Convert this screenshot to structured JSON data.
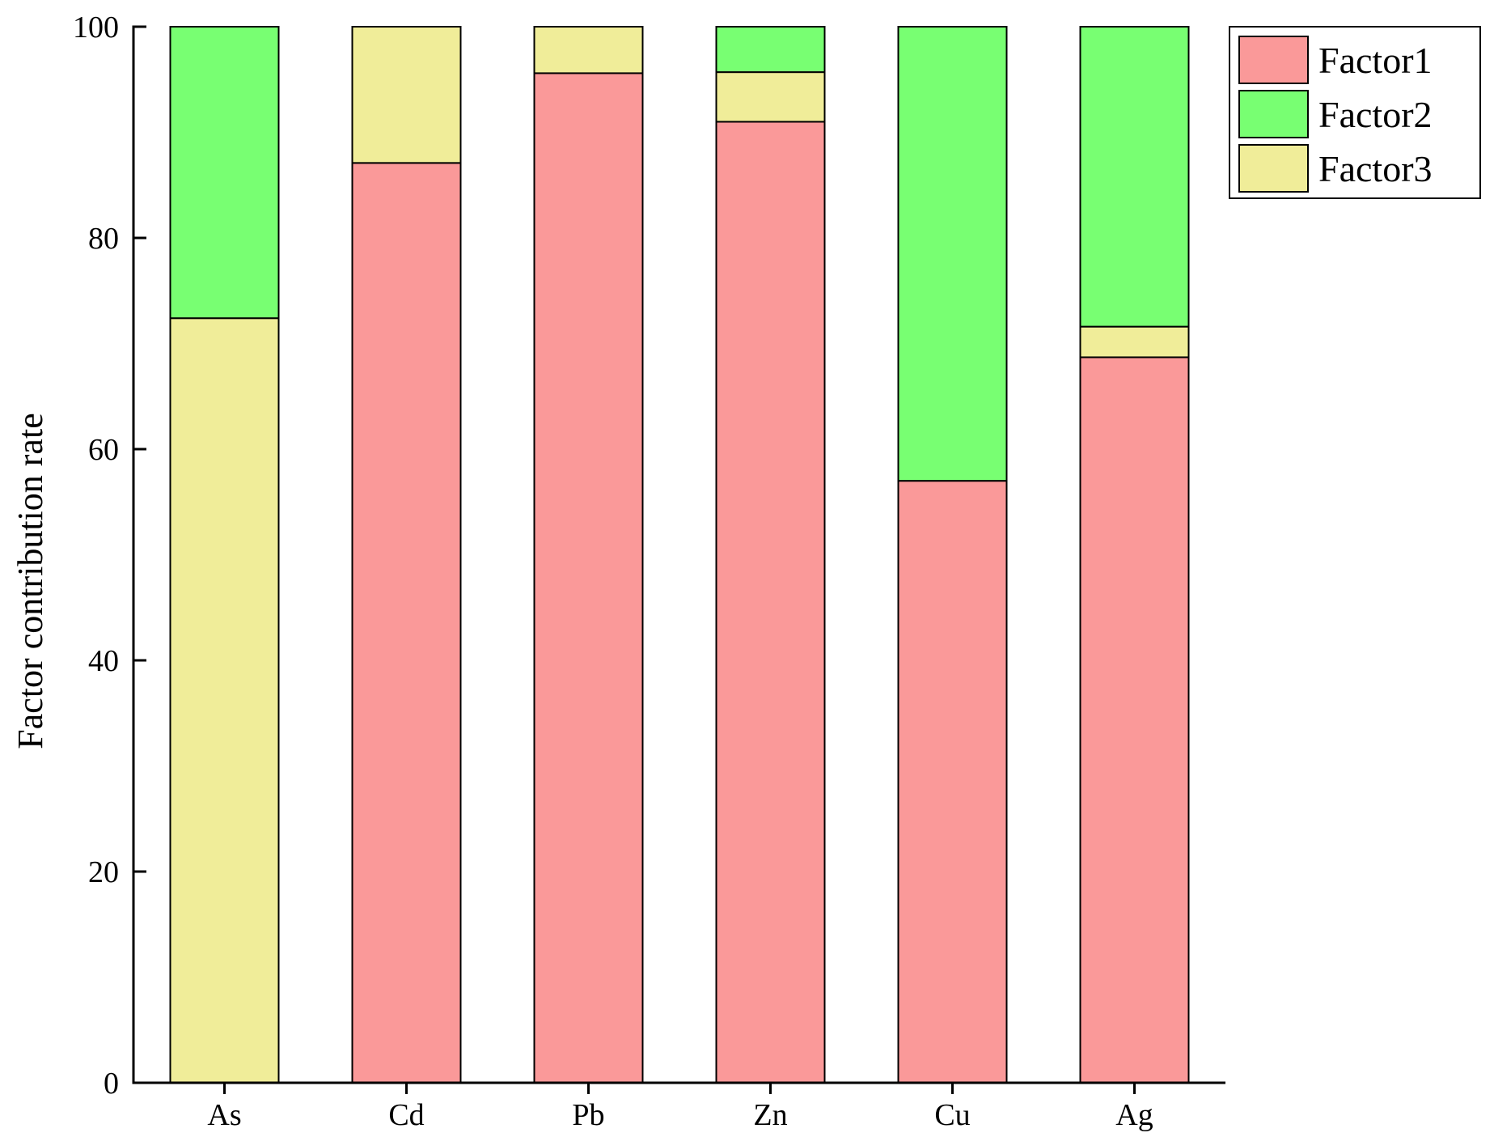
{
  "chart_data": {
    "type": "bar",
    "stacked": true,
    "categories": [
      "As",
      "Cd",
      "Pb",
      "Zn",
      "Cu",
      "Ag"
    ],
    "series": [
      {
        "name": "Factor1",
        "color": "#fa9999",
        "values": [
          0,
          87.1,
          95.6,
          91.0,
          57.0,
          68.7
        ]
      },
      {
        "name": "Factor3",
        "color": "#f0ed99",
        "values": [
          72.4,
          12.9,
          4.4,
          4.7,
          0,
          2.9
        ]
      },
      {
        "name": "Factor2",
        "color": "#78ff72",
        "values": [
          27.6,
          0,
          0,
          4.3,
          43.0,
          28.4
        ]
      }
    ],
    "legend_order": [
      "Factor1",
      "Factor2",
      "Factor3"
    ],
    "ylabel": "Factor contribution rate",
    "xlabel": "",
    "ylim": [
      0,
      100
    ],
    "yticks": [
      "0",
      "20",
      "40",
      "60",
      "80",
      "100"
    ],
    "grid": false,
    "legend_position": "top-right"
  }
}
